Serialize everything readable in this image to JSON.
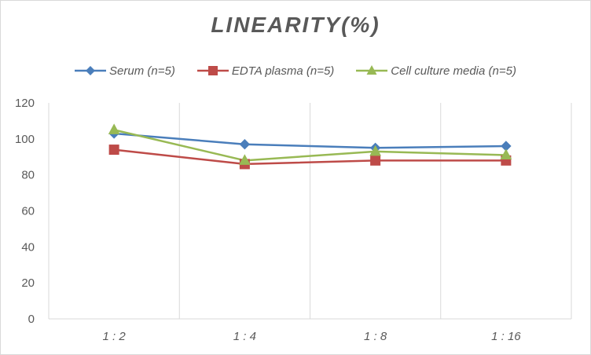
{
  "chart_data": {
    "type": "line",
    "title": "LINEARITY(%)",
    "categories": [
      "1:2",
      "1:4",
      "1:8",
      "1:16"
    ],
    "ylim": [
      0,
      120
    ],
    "yticks": [
      0,
      20,
      40,
      60,
      80,
      100,
      120
    ],
    "grid": "vertical",
    "legend_position": "top",
    "series": [
      {
        "name": "Serum (n=5)",
        "color": "#4a7ebb",
        "marker": "diamond",
        "values": [
          103,
          97,
          95,
          96
        ]
      },
      {
        "name": "EDTA plasma (n=5)",
        "color": "#be4b48",
        "marker": "square",
        "values": [
          94,
          86,
          88,
          88
        ]
      },
      {
        "name": "Cell culture media (n=5)",
        "color": "#98b954",
        "marker": "triangle",
        "values": [
          105,
          88,
          93,
          91
        ]
      }
    ]
  }
}
